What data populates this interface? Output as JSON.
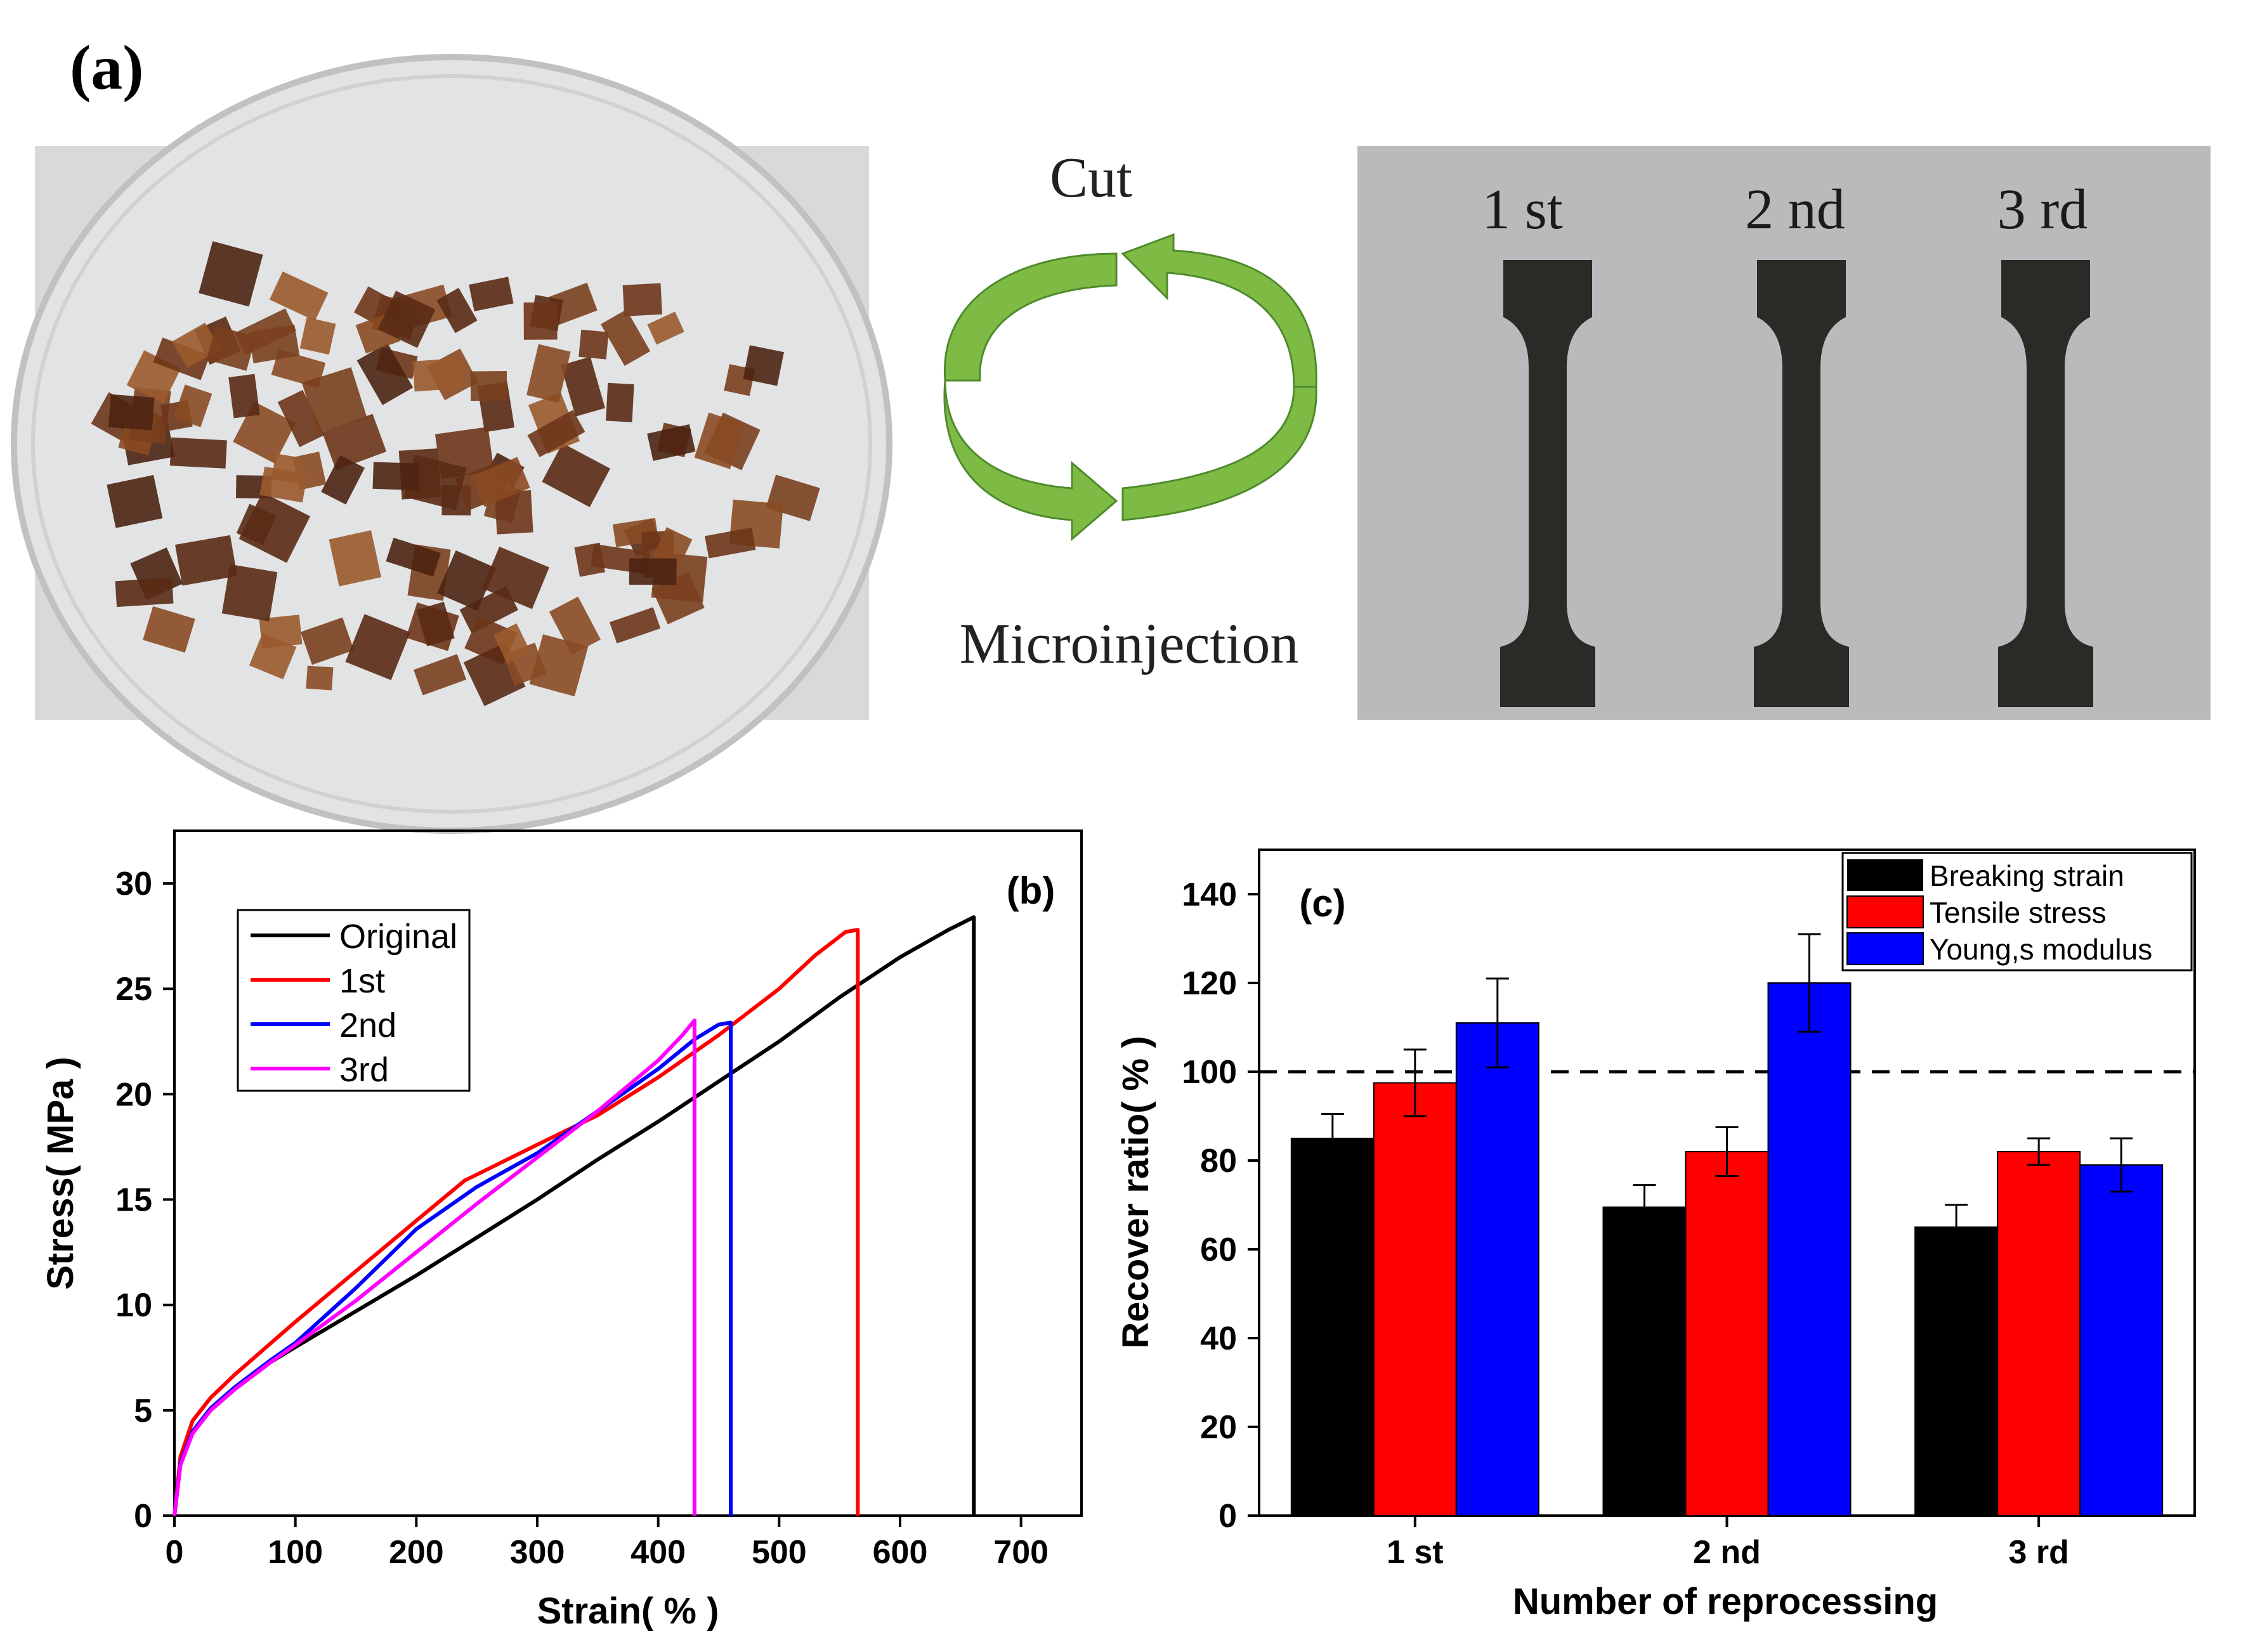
{
  "panel_a": {
    "label": "(a)",
    "cycle_top_label": "Cut",
    "cycle_bottom_label": "Microinjection",
    "specimen_labels": [
      "1 st",
      "2 nd",
      "3 rd"
    ],
    "photo_left_description": "petri dish with cut brown polymer pieces",
    "photo_right_description": "three dark dumbbell tensile specimens"
  },
  "colors": {
    "black": "#000000",
    "red": "#ff0000",
    "blue": "#0000ff",
    "magenta": "#ff00ff",
    "arrow_green": "#76b83f",
    "arrow_green_dark": "#3f7f2a",
    "dish_bg": "#dcdcdc",
    "piece_brown": "#7a3f1e",
    "specimen_bg": "#b8b9bb",
    "specimen_dark": "#2b2a27"
  },
  "chart_data": [
    {
      "panel": "(b)",
      "type": "line",
      "xlabel": "Strain( % )",
      "ylabel": "Stress( MPa )",
      "xlim": [
        0,
        750
      ],
      "ylim": [
        0,
        32.5
      ],
      "xticks": [
        0,
        100,
        200,
        300,
        400,
        500,
        600,
        700
      ],
      "yticks": [
        0,
        5,
        10,
        15,
        20,
        25,
        30
      ],
      "legend_position": "top-left",
      "series": [
        {
          "name": "Original",
          "color": "#000000",
          "x": [
            0,
            5,
            15,
            30,
            50,
            80,
            100,
            150,
            200,
            250,
            300,
            350,
            400,
            450,
            500,
            550,
            600,
            640,
            661,
            661
          ],
          "y": [
            0,
            2.5,
            4.0,
            5.0,
            6.0,
            7.3,
            8.0,
            9.7,
            11.4,
            13.2,
            15.0,
            16.9,
            18.7,
            20.6,
            22.5,
            24.6,
            26.5,
            27.8,
            28.4,
            0
          ]
        },
        {
          "name": "1st",
          "color": "#ff0000",
          "x": [
            0,
            5,
            15,
            30,
            50,
            80,
            100,
            150,
            200,
            240,
            300,
            350,
            400,
            450,
            500,
            530,
            555,
            565,
            565
          ],
          "y": [
            0,
            2.8,
            4.5,
            5.6,
            6.7,
            8.2,
            9.2,
            11.6,
            14.0,
            15.9,
            17.6,
            19.0,
            20.8,
            22.8,
            25.0,
            26.6,
            27.7,
            27.8,
            0
          ]
        },
        {
          "name": "2nd",
          "color": "#0000ff",
          "x": [
            0,
            5,
            15,
            30,
            50,
            80,
            100,
            150,
            200,
            250,
            300,
            350,
            400,
            430,
            450,
            460,
            460
          ],
          "y": [
            0,
            2.5,
            4.0,
            5.1,
            6.1,
            7.4,
            8.2,
            10.8,
            13.6,
            15.6,
            17.2,
            19.2,
            21.2,
            22.6,
            23.3,
            23.4,
            0
          ]
        },
        {
          "name": "3rd",
          "color": "#ff00ff",
          "x": [
            0,
            5,
            15,
            30,
            50,
            80,
            100,
            150,
            200,
            250,
            300,
            350,
            400,
            420,
            430,
            430
          ],
          "y": [
            0,
            2.4,
            3.9,
            5.0,
            6.0,
            7.3,
            8.1,
            10.2,
            12.5,
            14.8,
            17.0,
            19.2,
            21.6,
            22.8,
            23.5,
            0
          ]
        }
      ]
    },
    {
      "panel": "(c)",
      "type": "bar",
      "xlabel": "Number of reprocessing",
      "ylabel": "Recover ratio( % )",
      "ylim": [
        0,
        150
      ],
      "yticks": [
        0,
        20,
        40,
        60,
        80,
        100,
        120,
        140
      ],
      "reference_line": 100,
      "categories": [
        "1 st",
        "2 nd",
        "3 rd"
      ],
      "legend_position": "top-right",
      "series": [
        {
          "name": "Breaking strain",
          "color": "#000000",
          "values": [
            85,
            69.5,
            65
          ],
          "errors": [
            5.5,
            5,
            5
          ]
        },
        {
          "name": "Tensile stress",
          "color": "#ff0000",
          "values": [
            97.5,
            82,
            82
          ],
          "errors": [
            7.5,
            5.5,
            3
          ]
        },
        {
          "name": "Young,s modulus",
          "color": "#0000ff",
          "values": [
            111,
            120,
            79
          ],
          "errors": [
            10,
            11,
            6
          ]
        }
      ]
    }
  ]
}
